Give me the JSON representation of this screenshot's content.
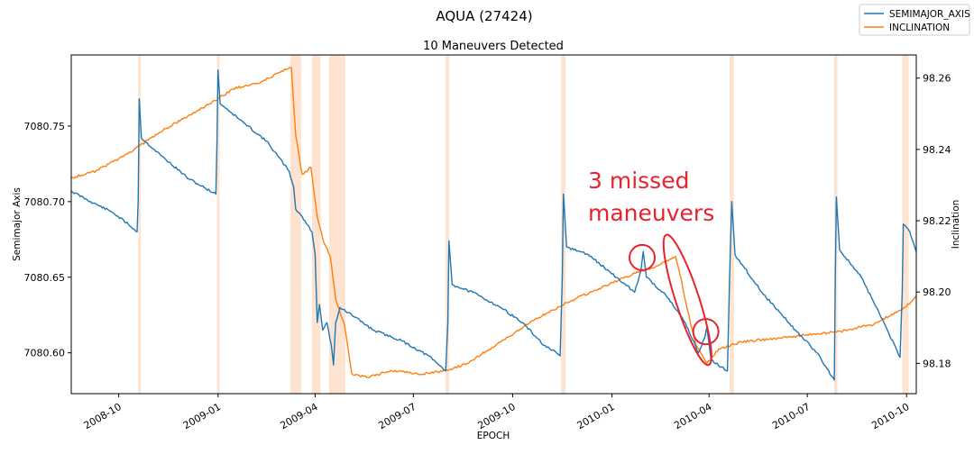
{
  "chart_data": {
    "type": "line",
    "suptitle": "AQUA (27424)",
    "title": "10 Maneuvers Detected",
    "xlabel": "EPOCH",
    "ylabel_left": "Semimajor Axis",
    "ylabel_right": "Inclination",
    "x_range": [
      "2008-08-18",
      "2010-10-10"
    ],
    "ylim_left": [
      7080.573,
      7080.797
    ],
    "ylim_right": [
      98.1715,
      98.2665
    ],
    "x_ticks": [
      {
        "label": "2008-10",
        "date": "2008-10-01"
      },
      {
        "label": "2009-01",
        "date": "2009-01-01"
      },
      {
        "label": "2009-04",
        "date": "2009-04-01"
      },
      {
        "label": "2009-07",
        "date": "2009-07-01"
      },
      {
        "label": "2009-10",
        "date": "2009-10-01"
      },
      {
        "label": "2010-01",
        "date": "2010-01-01"
      },
      {
        "label": "2010-04",
        "date": "2010-04-01"
      },
      {
        "label": "2010-07",
        "date": "2010-07-01"
      },
      {
        "label": "2010-10",
        "date": "2010-10-01"
      }
    ],
    "y_ticks_left": [
      {
        "label": "7080.60",
        "value": 7080.6
      },
      {
        "label": "7080.65",
        "value": 7080.65
      },
      {
        "label": "7080.70",
        "value": 7080.7
      },
      {
        "label": "7080.75",
        "value": 7080.75
      }
    ],
    "y_ticks_right": [
      {
        "label": "98.18",
        "value": 98.18
      },
      {
        "label": "98.20",
        "value": 98.2
      },
      {
        "label": "98.22",
        "value": 98.22
      },
      {
        "label": "98.24",
        "value": 98.24
      },
      {
        "label": "98.26",
        "value": 98.26
      }
    ],
    "grid": false,
    "legend_position": "top-right",
    "maneuver_color": "#fde3d0",
    "maneuver_windows": [
      [
        "2008-10-19",
        "2008-10-21"
      ],
      [
        "2008-12-31",
        "2009-01-02"
      ],
      [
        "2009-03-09",
        "2009-03-19"
      ],
      [
        "2009-03-29",
        "2009-04-06"
      ],
      [
        "2009-04-14",
        "2009-04-29"
      ],
      [
        "2009-07-31",
        "2009-08-03"
      ],
      [
        "2009-11-15",
        "2009-11-19"
      ],
      [
        "2010-04-20",
        "2010-04-24"
      ],
      [
        "2010-07-26",
        "2010-07-29"
      ],
      [
        "2010-09-27",
        "2010-10-03"
      ]
    ],
    "series": [
      {
        "name": "SEMIMAJOR_AXIS",
        "axis": "left",
        "color": "#1f77b4",
        "points": [
          [
            "2008-08-18",
            7080.707
          ],
          [
            "2008-09-05",
            7080.7
          ],
          [
            "2008-09-25",
            7080.693
          ],
          [
            "2008-10-10",
            7080.685
          ],
          [
            "2008-10-18",
            7080.68
          ],
          [
            "2008-10-19",
            7080.7
          ],
          [
            "2008-10-20",
            7080.768
          ],
          [
            "2008-10-22",
            7080.742
          ],
          [
            "2008-11-10",
            7080.73
          ],
          [
            "2008-12-05",
            7080.715
          ],
          [
            "2008-12-30",
            7080.705
          ],
          [
            "2008-12-31",
            7080.74
          ],
          [
            "2009-01-01",
            7080.787
          ],
          [
            "2009-01-03",
            7080.765
          ],
          [
            "2009-01-25",
            7080.752
          ],
          [
            "2009-02-15",
            7080.74
          ],
          [
            "2009-03-08",
            7080.72
          ],
          [
            "2009-03-12",
            7080.71
          ],
          [
            "2009-03-14",
            7080.695
          ],
          [
            "2009-03-20",
            7080.69
          ],
          [
            "2009-03-29",
            7080.68
          ],
          [
            "2009-04-01",
            7080.665
          ],
          [
            "2009-04-03",
            7080.62
          ],
          [
            "2009-04-05",
            7080.632
          ],
          [
            "2009-04-08",
            7080.615
          ],
          [
            "2009-04-12",
            7080.62
          ],
          [
            "2009-04-16",
            7080.605
          ],
          [
            "2009-04-18",
            7080.592
          ],
          [
            "2009-04-20",
            7080.62
          ],
          [
            "2009-04-24",
            7080.63
          ],
          [
            "2009-05-05",
            7080.625
          ],
          [
            "2009-05-25",
            7080.615
          ],
          [
            "2009-06-20",
            7080.608
          ],
          [
            "2009-07-15",
            7080.598
          ],
          [
            "2009-07-31",
            7080.588
          ],
          [
            "2009-08-02",
            7080.62
          ],
          [
            "2009-08-03",
            7080.674
          ],
          [
            "2009-08-06",
            7080.645
          ],
          [
            "2009-08-25",
            7080.64
          ],
          [
            "2009-09-20",
            7080.63
          ],
          [
            "2009-10-10",
            7080.62
          ],
          [
            "2009-10-30",
            7080.605
          ],
          [
            "2009-11-14",
            7080.598
          ],
          [
            "2009-11-16",
            7080.65
          ],
          [
            "2009-11-17",
            7080.705
          ],
          [
            "2009-11-20",
            7080.67
          ],
          [
            "2009-12-10",
            7080.665
          ],
          [
            "2010-01-05",
            7080.65
          ],
          [
            "2010-01-22",
            7080.64
          ],
          [
            "2010-01-28",
            7080.655
          ],
          [
            "2010-01-30",
            7080.667
          ],
          [
            "2010-02-02",
            7080.65
          ],
          [
            "2010-02-20",
            7080.638
          ],
          [
            "2010-03-10",
            7080.62
          ],
          [
            "2010-03-22",
            7080.6
          ],
          [
            "2010-03-28",
            7080.61
          ],
          [
            "2010-03-30",
            7080.617
          ],
          [
            "2010-04-03",
            7080.595
          ],
          [
            "2010-04-18",
            7080.588
          ],
          [
            "2010-04-20",
            7080.65
          ],
          [
            "2010-04-22",
            7080.7
          ],
          [
            "2010-04-25",
            7080.665
          ],
          [
            "2010-05-20",
            7080.64
          ],
          [
            "2010-06-20",
            7080.615
          ],
          [
            "2010-07-10",
            7080.6
          ],
          [
            "2010-07-26",
            7080.582
          ],
          [
            "2010-07-27",
            7080.65
          ],
          [
            "2010-07-28",
            7080.703
          ],
          [
            "2010-07-31",
            7080.668
          ],
          [
            "2010-08-20",
            7080.65
          ],
          [
            "2010-09-10",
            7080.62
          ],
          [
            "2010-09-25",
            7080.597
          ],
          [
            "2010-09-27",
            7080.64
          ],
          [
            "2010-09-28",
            7080.685
          ],
          [
            "2010-10-04",
            7080.68
          ],
          [
            "2010-10-10",
            7080.667
          ]
        ]
      },
      {
        "name": "INCLINATION",
        "axis": "right",
        "color": "#ff7f0e",
        "points": [
          [
            "2008-08-18",
            98.232
          ],
          [
            "2008-09-10",
            98.234
          ],
          [
            "2008-10-05",
            98.238
          ],
          [
            "2008-10-20",
            98.241
          ],
          [
            "2008-11-20",
            98.247
          ],
          [
            "2008-12-20",
            98.252
          ],
          [
            "2009-01-15",
            98.257
          ],
          [
            "2009-02-10",
            98.259
          ],
          [
            "2009-03-01",
            98.262
          ],
          [
            "2009-03-10",
            98.263
          ],
          [
            "2009-03-14",
            98.244
          ],
          [
            "2009-03-20",
            98.233
          ],
          [
            "2009-03-28",
            98.235
          ],
          [
            "2009-04-03",
            98.221
          ],
          [
            "2009-04-08",
            98.215
          ],
          [
            "2009-04-15",
            98.21
          ],
          [
            "2009-04-20",
            98.198
          ],
          [
            "2009-04-28",
            98.191
          ],
          [
            "2009-05-05",
            98.177
          ],
          [
            "2009-05-20",
            98.176
          ],
          [
            "2009-06-10",
            98.178
          ],
          [
            "2009-07-10",
            98.177
          ],
          [
            "2009-08-02",
            98.178
          ],
          [
            "2009-08-20",
            98.18
          ],
          [
            "2009-09-20",
            98.186
          ],
          [
            "2009-10-20",
            98.192
          ],
          [
            "2009-11-20",
            98.197
          ],
          [
            "2009-12-20",
            98.201
          ],
          [
            "2010-01-20",
            98.205
          ],
          [
            "2010-02-10",
            98.207
          ],
          [
            "2010-03-01",
            98.21
          ],
          [
            "2010-03-05",
            98.205
          ],
          [
            "2010-03-12",
            98.195
          ],
          [
            "2010-03-20",
            98.185
          ],
          [
            "2010-03-30",
            98.18
          ],
          [
            "2010-04-10",
            98.184
          ],
          [
            "2010-05-01",
            98.186
          ],
          [
            "2010-06-01",
            98.187
          ],
          [
            "2010-07-01",
            98.188
          ],
          [
            "2010-08-01",
            98.189
          ],
          [
            "2010-09-01",
            98.191
          ],
          [
            "2010-10-01",
            98.196
          ],
          [
            "2010-10-10",
            98.199
          ]
        ]
      }
    ],
    "annotations": [
      {
        "type": "text",
        "lines": [
          "3 missed",
          "maneuvers"
        ],
        "color": "#e8232e"
      },
      {
        "type": "circle",
        "date": "2010-01-29",
        "value": 7080.663
      },
      {
        "type": "circle",
        "date": "2010-03-29",
        "value": 7080.614
      },
      {
        "type": "ellipse",
        "date": "2010-03-12",
        "value": 7080.635
      }
    ]
  }
}
